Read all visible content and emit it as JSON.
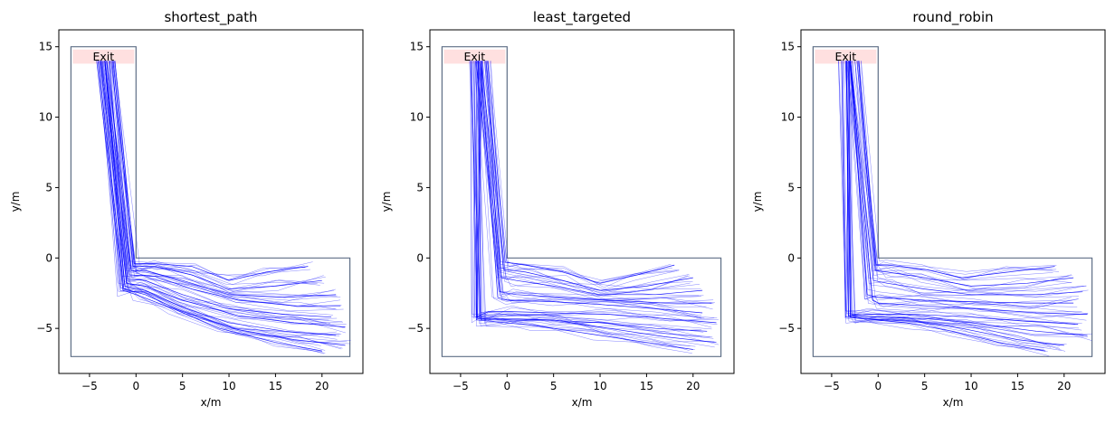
{
  "chart_data": [
    {
      "type": "line",
      "title": "shortest_path",
      "xlabel": "x/m",
      "ylabel": "y/m",
      "xlim": [
        -8.3,
        24.4
      ],
      "ylim": [
        -8.2,
        16.2
      ],
      "xticks": [
        -5,
        0,
        5,
        10,
        15,
        20
      ],
      "yticks": [
        -5,
        0,
        5,
        10,
        15
      ],
      "grid": false,
      "geometry_polygon": [
        [
          -7,
          15
        ],
        [
          0,
          15
        ],
        [
          0,
          0
        ],
        [
          23,
          0
        ],
        [
          23,
          -7
        ],
        [
          -7,
          -7
        ]
      ],
      "exit": {
        "label": "Exit",
        "x": [
          -7,
          0
        ],
        "y": [
          13.8,
          14.8
        ],
        "color": "#ffe0e0"
      },
      "trajectory_color": "#0000ff",
      "series": [
        {
          "values": [
            [
              18.5,
              -0.6
            ],
            [
              14,
              -1.0
            ],
            [
              10,
              -1.6
            ],
            [
              6,
              -0.6
            ],
            [
              2,
              -0.4
            ],
            [
              -0.2,
              -0.4
            ],
            [
              -2.5,
              14
            ]
          ]
        },
        {
          "values": [
            [
              20,
              -1.6
            ],
            [
              15,
              -2.0
            ],
            [
              10,
              -2.2
            ],
            [
              6,
              -1.2
            ],
            [
              2,
              -0.6
            ],
            [
              -0.3,
              -0.6
            ],
            [
              -2.7,
              14
            ]
          ]
        },
        {
          "values": [
            [
              21.5,
              -2.6
            ],
            [
              16,
              -2.8
            ],
            [
              10,
              -2.6
            ],
            [
              5,
              -1.6
            ],
            [
              1,
              -0.9
            ],
            [
              -0.5,
              -0.9
            ],
            [
              -2.9,
              14
            ]
          ]
        },
        {
          "values": [
            [
              22,
              -3.4
            ],
            [
              17,
              -3.4
            ],
            [
              11,
              -3.0
            ],
            [
              6,
              -2.2
            ],
            [
              2,
              -1.3
            ],
            [
              -0.7,
              -1.2
            ],
            [
              -3.1,
              14
            ]
          ]
        },
        {
          "values": [
            [
              21,
              -4.2
            ],
            [
              16,
              -4.0
            ],
            [
              10,
              -3.6
            ],
            [
              5,
              -2.6
            ],
            [
              1,
              -1.6
            ],
            [
              -0.9,
              -1.5
            ],
            [
              -3.3,
              14
            ]
          ]
        },
        {
          "values": [
            [
              22.5,
              -4.9
            ],
            [
              17,
              -4.6
            ],
            [
              11,
              -4.1
            ],
            [
              5,
              -3.0
            ],
            [
              1,
              -2.0
            ],
            [
              -1.0,
              -1.8
            ],
            [
              -3.5,
              14
            ]
          ]
        },
        {
          "values": [
            [
              21.5,
              -5.5
            ],
            [
              16,
              -5.2
            ],
            [
              10,
              -4.6
            ],
            [
              5,
              -3.5
            ],
            [
              1,
              -2.3
            ],
            [
              -1.2,
              -2.0
            ],
            [
              -3.6,
              14
            ]
          ]
        },
        {
          "values": [
            [
              22.5,
              -6.2
            ],
            [
              17,
              -5.8
            ],
            [
              11,
              -5.1
            ],
            [
              5,
              -3.8
            ],
            [
              1,
              -2.6
            ],
            [
              -1.3,
              -2.2
            ],
            [
              -3.8,
              14
            ]
          ]
        },
        {
          "values": [
            [
              20,
              -6.6
            ],
            [
              15,
              -6.0
            ],
            [
              9,
              -5.0
            ],
            [
              4,
              -3.6
            ],
            [
              0,
              -2.6
            ],
            [
              -1.4,
              -2.3
            ],
            [
              -3.9,
              14
            ]
          ]
        }
      ]
    },
    {
      "type": "line",
      "title": "least_targeted",
      "xlabel": "x/m",
      "ylabel": "y/m",
      "xlim": [
        -8.3,
        24.4
      ],
      "ylim": [
        -8.2,
        16.2
      ],
      "xticks": [
        -5,
        0,
        5,
        10,
        15,
        20
      ],
      "yticks": [
        -5,
        0,
        5,
        10,
        15
      ],
      "grid": false,
      "geometry_polygon": [
        [
          -7,
          15
        ],
        [
          0,
          15
        ],
        [
          0,
          0
        ],
        [
          23,
          0
        ],
        [
          23,
          -7
        ],
        [
          -7,
          -7
        ]
      ],
      "exit": {
        "label": "Exit",
        "x": [
          -7,
          0
        ],
        "y": [
          13.8,
          14.8
        ],
        "color": "#ffe0e0"
      },
      "trajectory_color": "#0000ff",
      "series": [
        {
          "values": [
            [
              18,
              -0.5
            ],
            [
              14,
              -1.2
            ],
            [
              10,
              -1.8
            ],
            [
              6,
              -1.0
            ],
            [
              2,
              -0.5
            ],
            [
              -0.2,
              -0.3
            ],
            [
              -2.0,
              14
            ]
          ]
        },
        {
          "values": [
            [
              20,
              -1.4
            ],
            [
              15,
              -2.0
            ],
            [
              10,
              -2.3
            ],
            [
              6,
              -1.6
            ],
            [
              2,
              -1.0
            ],
            [
              -0.4,
              -0.8
            ],
            [
              -2.4,
              14
            ]
          ]
        },
        {
          "values": [
            [
              21,
              -2.3
            ],
            [
              16,
              -2.6
            ],
            [
              10,
              -2.6
            ],
            [
              5,
              -2.0
            ],
            [
              1,
              -1.6
            ],
            [
              -0.6,
              -1.4
            ],
            [
              -2.8,
              14
            ]
          ]
        },
        {
          "values": [
            [
              22,
              -3.2
            ],
            [
              17,
              -3.2
            ],
            [
              11,
              -3.0
            ],
            [
              6,
              -2.8
            ],
            [
              1,
              -2.6
            ],
            [
              -0.8,
              -2.4
            ],
            [
              -3.0,
              14
            ]
          ]
        },
        {
          "values": [
            [
              21,
              -3.9
            ],
            [
              16,
              -3.6
            ],
            [
              10,
              -3.3
            ],
            [
              5,
              -3.1
            ],
            [
              0,
              -3.0
            ],
            [
              -1.0,
              -2.8
            ],
            [
              -3.2,
              14
            ]
          ]
        },
        {
          "values": [
            [
              22.5,
              -4.6
            ],
            [
              17,
              -4.3
            ],
            [
              11,
              -4.0
            ],
            [
              5,
              -3.9
            ],
            [
              0,
              -3.8
            ],
            [
              -2,
              -3.8
            ],
            [
              -3.3,
              -4.2
            ],
            [
              -3.6,
              14
            ]
          ]
        },
        {
          "values": [
            [
              21.5,
              -5.2
            ],
            [
              16,
              -5.0
            ],
            [
              10,
              -4.6
            ],
            [
              4,
              -4.4
            ],
            [
              -1,
              -4.4
            ],
            [
              -2.8,
              -4.4
            ],
            [
              -3.4,
              14
            ]
          ]
        },
        {
          "values": [
            [
              22.5,
              -6.0
            ],
            [
              17,
              -5.6
            ],
            [
              11,
              -5.0
            ],
            [
              5,
              -4.4
            ],
            [
              0,
              -4.3
            ],
            [
              -3.2,
              -4.3
            ],
            [
              -3.8,
              14
            ]
          ]
        },
        {
          "values": [
            [
              20,
              -6.5
            ],
            [
              15,
              -6.0
            ],
            [
              9,
              -5.4
            ],
            [
              3,
              -4.8
            ],
            [
              -3.3,
              -4.4
            ],
            [
              -3.0,
              14
            ]
          ]
        }
      ]
    },
    {
      "type": "line",
      "title": "round_robin",
      "xlabel": "x/m",
      "ylabel": "y/m",
      "xlim": [
        -8.3,
        24.4
      ],
      "ylim": [
        -8.2,
        16.2
      ],
      "xticks": [
        -5,
        0,
        5,
        10,
        15,
        20
      ],
      "yticks": [
        -5,
        0,
        5,
        10,
        15
      ],
      "grid": false,
      "geometry_polygon": [
        [
          -7,
          15
        ],
        [
          0,
          15
        ],
        [
          0,
          0
        ],
        [
          23,
          0
        ],
        [
          23,
          -7
        ],
        [
          -7,
          -7
        ]
      ],
      "exit": {
        "label": "Exit",
        "x": [
          -7,
          0
        ],
        "y": [
          13.8,
          14.8
        ],
        "color": "#ffe0e0"
      },
      "trajectory_color": "#0000ff",
      "series": [
        {
          "values": [
            [
              19,
              -0.6
            ],
            [
              14,
              -1.0
            ],
            [
              9,
              -1.4
            ],
            [
              5,
              -0.8
            ],
            [
              1,
              -0.5
            ],
            [
              -0.2,
              -0.5
            ],
            [
              -2.0,
              14
            ]
          ]
        },
        {
          "values": [
            [
              21,
              -1.4
            ],
            [
              16,
              -1.8
            ],
            [
              10,
              -2.0
            ],
            [
              5,
              -1.4
            ],
            [
              1,
              -1.0
            ],
            [
              -0.3,
              -0.9
            ],
            [
              -2.4,
              14
            ]
          ]
        },
        {
          "values": [
            [
              22,
              -2.4
            ],
            [
              17,
              -2.6
            ],
            [
              10,
              -2.6
            ],
            [
              5,
              -2.2
            ],
            [
              1,
              -1.8
            ],
            [
              -0.5,
              -1.6
            ],
            [
              -2.7,
              14
            ]
          ]
        },
        {
          "values": [
            [
              21,
              -3.2
            ],
            [
              16,
              -3.2
            ],
            [
              10,
              -3.1
            ],
            [
              5,
              -3.0
            ],
            [
              0,
              -2.8
            ],
            [
              -1.2,
              -2.6
            ],
            [
              -3.0,
              14
            ]
          ]
        },
        {
          "values": [
            [
              22.5,
              -4.0
            ],
            [
              17,
              -3.9
            ],
            [
              11,
              -3.6
            ],
            [
              5,
              -3.4
            ],
            [
              0,
              -3.2
            ],
            [
              -0.6,
              -3.0
            ],
            [
              -3.1,
              14
            ]
          ]
        },
        {
          "values": [
            [
              21.5,
              -4.7
            ],
            [
              16,
              -4.5
            ],
            [
              10,
              -4.2
            ],
            [
              4,
              -4.0
            ],
            [
              -1,
              -4.0
            ],
            [
              -3.2,
              -4.1
            ],
            [
              -3.4,
              14
            ]
          ]
        },
        {
          "values": [
            [
              22.5,
              -5.5
            ],
            [
              17,
              -5.2
            ],
            [
              10,
              -4.6
            ],
            [
              5,
              -4.3
            ],
            [
              0,
              -4.2
            ],
            [
              -3.0,
              -4.2
            ],
            [
              -3.6,
              14
            ]
          ]
        },
        {
          "values": [
            [
              20,
              -6.2
            ],
            [
              15,
              -5.8
            ],
            [
              9,
              -5.0
            ],
            [
              4,
              -4.5
            ],
            [
              -2,
              -4.3
            ],
            [
              -3.0,
              -4.2
            ],
            [
              -2.8,
              14
            ]
          ]
        },
        {
          "values": [
            [
              18,
              -6.6
            ],
            [
              13,
              -6.0
            ],
            [
              8,
              -5.2
            ],
            [
              3,
              -4.6
            ],
            [
              -3.5,
              -4.2
            ],
            [
              -3.9,
              14
            ]
          ]
        }
      ]
    }
  ]
}
